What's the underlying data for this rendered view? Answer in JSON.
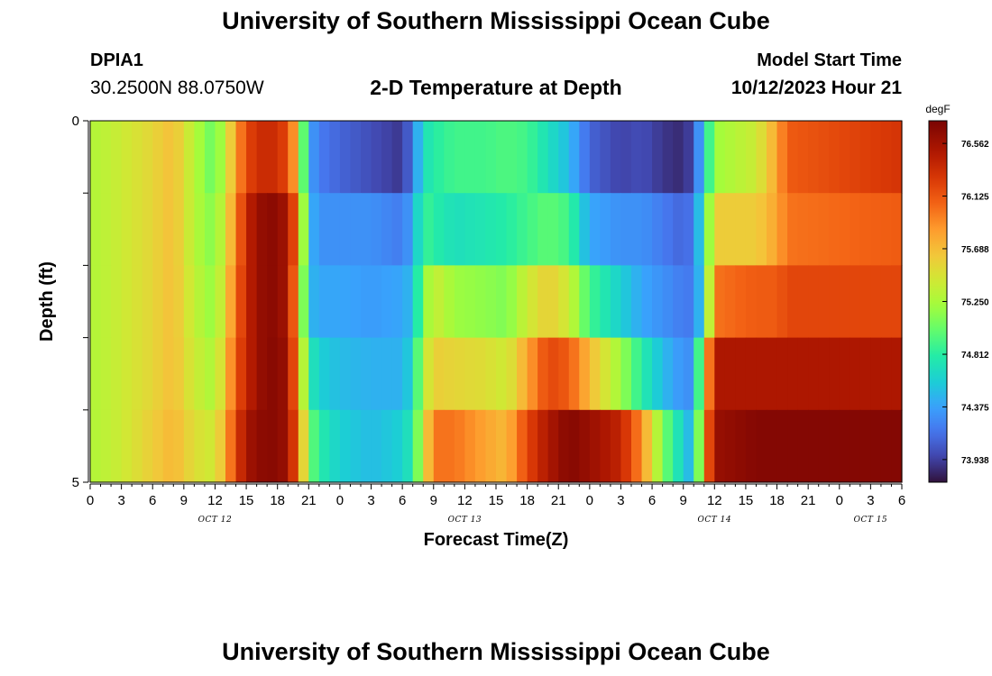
{
  "header": {
    "title": "University of Southern Mississippi Ocean Cube",
    "station": "DPIA1",
    "coords": "30.2500N  88.0750W",
    "subtitle": "2-D Temperature at Depth",
    "model_start_label": "Model Start Time",
    "model_start_value": "10/12/2023 Hour 21"
  },
  "footer": {
    "title": "University of Southern Mississippi Ocean Cube"
  },
  "chart_data": {
    "type": "heatmap",
    "title": "2-D Temperature at Depth",
    "xlabel": "Forecast Time(Z)",
    "ylabel": "Depth (ft)",
    "units": "degF",
    "x_start_hour": 0,
    "x_step_hours": 1,
    "x_ticks": [
      "0",
      "3",
      "6",
      "9",
      "12",
      "15",
      "18",
      "21",
      "0",
      "3",
      "6",
      "9",
      "12",
      "15",
      "18",
      "21",
      "0",
      "3",
      "6",
      "9",
      "12",
      "15",
      "18",
      "21",
      "0",
      "3",
      "6"
    ],
    "date_labels": [
      {
        "text": "OCT 12",
        "hour": 12
      },
      {
        "text": "OCT 13",
        "hour": 36
      },
      {
        "text": "OCT 14",
        "hour": 60
      },
      {
        "text": "OCT 15",
        "hour": 75
      }
    ],
    "y_ticks": [
      "0",
      "5"
    ],
    "ylim": [
      0,
      5
    ],
    "depth_levels": [
      0,
      1,
      2,
      3,
      4,
      5
    ],
    "colorbar": {
      "min": 73.75,
      "max": 76.75,
      "ticks": [
        "76.562",
        "76.125",
        "75.688",
        "75.250",
        "74.812",
        "74.375",
        "73.938"
      ]
    },
    "keyframes": [
      {
        "h": 0,
        "v": [
          75.28,
          75.28,
          75.28,
          75.28,
          75.28
        ]
      },
      {
        "h": 3,
        "v": [
          75.4,
          75.4,
          75.4,
          75.4,
          75.4
        ]
      },
      {
        "h": 6,
        "v": [
          75.55,
          75.55,
          75.55,
          75.55,
          75.6
        ]
      },
      {
        "h": 8,
        "v": [
          75.68,
          75.68,
          75.68,
          75.68,
          75.72
        ]
      },
      {
        "h": 10,
        "v": [
          75.3,
          75.3,
          75.35,
          75.4,
          75.5
        ]
      },
      {
        "h": 12,
        "v": [
          75.0,
          75.1,
          75.15,
          75.25,
          75.4
        ]
      },
      {
        "h": 14,
        "v": [
          75.8,
          75.9,
          76.0,
          76.1,
          76.2
        ]
      },
      {
        "h": 15,
        "v": [
          76.2,
          76.4,
          76.4,
          76.4,
          76.55
        ]
      },
      {
        "h": 17,
        "v": [
          76.4,
          76.7,
          76.7,
          76.7,
          76.7
        ]
      },
      {
        "h": 19,
        "v": [
          76.2,
          76.55,
          76.55,
          76.6,
          76.6
        ]
      },
      {
        "h": 20,
        "v": [
          75.6,
          75.9,
          75.7,
          75.8,
          76.0
        ]
      },
      {
        "h": 21,
        "v": [
          74.4,
          74.5,
          74.5,
          74.8,
          75.1
        ]
      },
      {
        "h": 22,
        "v": [
          74.2,
          74.3,
          74.4,
          74.6,
          74.8
        ]
      },
      {
        "h": 24,
        "v": [
          74.1,
          74.3,
          74.4,
          74.5,
          74.6
        ]
      },
      {
        "h": 27,
        "v": [
          74.0,
          74.3,
          74.35,
          74.45,
          74.5
        ]
      },
      {
        "h": 30,
        "v": [
          73.9,
          74.2,
          74.4,
          74.45,
          74.6
        ]
      },
      {
        "h": 31,
        "v": [
          74.2,
          74.4,
          74.5,
          74.65,
          74.8
        ]
      },
      {
        "h": 32,
        "v": [
          74.7,
          74.9,
          75.1,
          75.3,
          75.4
        ]
      },
      {
        "h": 33,
        "v": [
          74.8,
          74.8,
          75.4,
          75.6,
          76.0
        ]
      },
      {
        "h": 35,
        "v": [
          74.9,
          74.7,
          75.2,
          75.55,
          76.0
        ]
      },
      {
        "h": 38,
        "v": [
          74.9,
          74.75,
          75.15,
          75.5,
          75.8
        ]
      },
      {
        "h": 40,
        "v": [
          74.95,
          74.8,
          75.1,
          75.4,
          75.7
        ]
      },
      {
        "h": 42,
        "v": [
          74.9,
          74.9,
          75.4,
          75.8,
          76.2
        ]
      },
      {
        "h": 44,
        "v": [
          74.7,
          75.0,
          75.6,
          76.2,
          76.5
        ]
      },
      {
        "h": 46,
        "v": [
          74.5,
          74.9,
          75.4,
          76.1,
          76.7
        ]
      },
      {
        "h": 48,
        "v": [
          74.1,
          74.4,
          74.9,
          75.7,
          76.6
        ]
      },
      {
        "h": 51,
        "v": [
          73.95,
          74.3,
          74.6,
          75.2,
          76.4
        ]
      },
      {
        "h": 53,
        "v": [
          74.0,
          74.3,
          74.4,
          74.8,
          75.9
        ]
      },
      {
        "h": 55,
        "v": [
          73.9,
          74.2,
          74.3,
          74.5,
          75.1
        ]
      },
      {
        "h": 57,
        "v": [
          73.85,
          74.1,
          74.2,
          74.3,
          74.6
        ]
      },
      {
        "h": 58,
        "v": [
          74.0,
          74.2,
          74.2,
          74.3,
          74.4
        ]
      },
      {
        "h": 59,
        "v": [
          74.6,
          74.8,
          74.7,
          75.5,
          75.8
        ]
      },
      {
        "h": 60,
        "v": [
          75.2,
          75.6,
          76.0,
          76.5,
          76.6
        ]
      },
      {
        "h": 64,
        "v": [
          75.4,
          75.6,
          76.1,
          76.5,
          76.7
        ]
      },
      {
        "h": 66,
        "v": [
          75.8,
          75.8,
          76.1,
          76.5,
          76.7
        ]
      },
      {
        "h": 67,
        "v": [
          76.1,
          76.0,
          76.2,
          76.5,
          76.7
        ]
      },
      {
        "h": 78,
        "v": [
          76.3,
          76.1,
          76.2,
          76.5,
          76.7
        ]
      }
    ]
  }
}
